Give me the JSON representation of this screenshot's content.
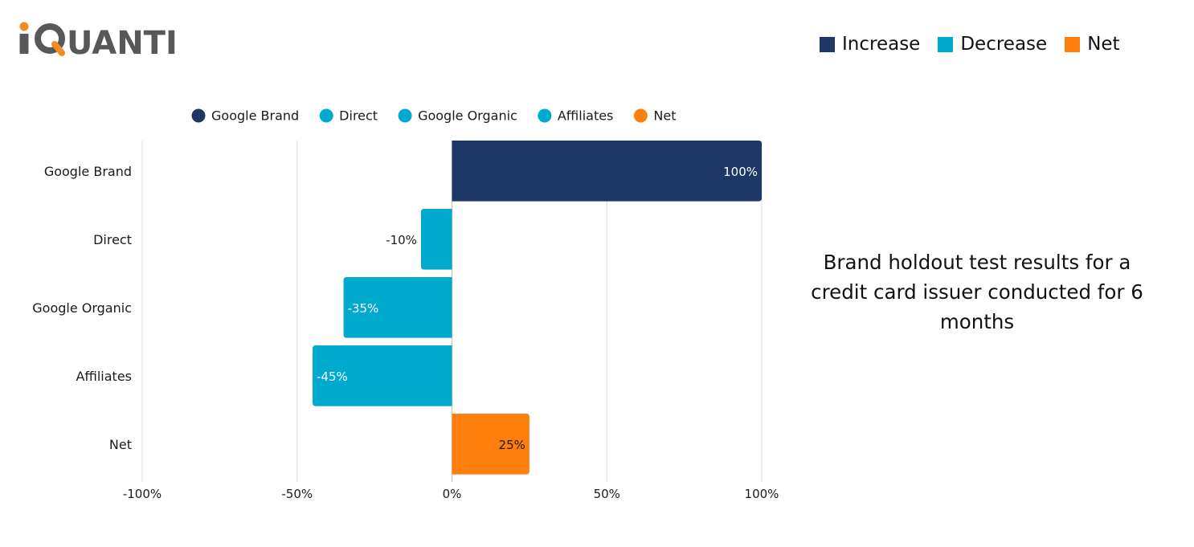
{
  "logo": {
    "text": "iQUANTI",
    "colors": {
      "dark": "#58585a",
      "accent": "#f58a1f"
    }
  },
  "top_legend": [
    {
      "label": "Increase",
      "color": "#1d3767"
    },
    {
      "label": "Decrease",
      "color": "#00a9ce"
    },
    {
      "label": "Net",
      "color": "#ff7f0e"
    }
  ],
  "caption": "Brand holdout test results for a credit card issuer conducted for 6 months",
  "chart_data": {
    "type": "bar",
    "orientation": "horizontal",
    "categories": [
      "Google Brand",
      "Direct",
      "Google Organic",
      "Affiliates",
      "Net"
    ],
    "values": [
      100,
      -10,
      -35,
      -45,
      25
    ],
    "data_labels": [
      "100%",
      "-10%",
      "-35%",
      "-45%",
      "25%"
    ],
    "colors": [
      "#1d3767",
      "#00a9ce",
      "#00a9ce",
      "#00a9ce",
      "#ff7f0e"
    ],
    "legend": [
      {
        "label": "Google Brand",
        "color": "#1d3767"
      },
      {
        "label": "Direct",
        "color": "#00a9ce"
      },
      {
        "label": "Google Organic",
        "color": "#00a9ce"
      },
      {
        "label": "Affiliates",
        "color": "#00a9ce"
      },
      {
        "label": "Net",
        "color": "#ff7f0e"
      }
    ],
    "legend_position": "top",
    "xlim": [
      -100,
      100
    ],
    "x_ticks": [
      -100,
      -50,
      0,
      50,
      100
    ],
    "x_tick_labels": [
      "-100%",
      "-50%",
      "0%",
      "50%",
      "100%"
    ],
    "grid": true,
    "title": "",
    "xlabel": "",
    "ylabel": ""
  }
}
